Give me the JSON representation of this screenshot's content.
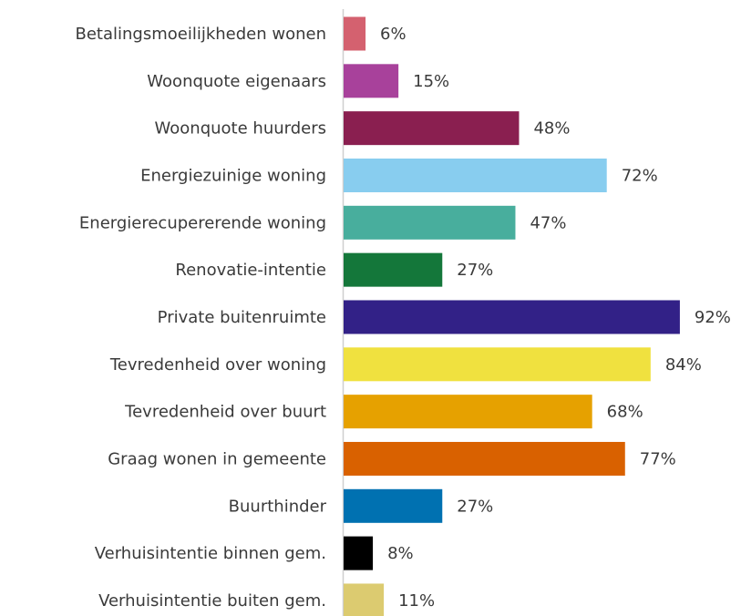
{
  "chart_data": {
    "type": "barh",
    "categories": [
      "Betalingsmoeilijkheden wonen",
      "Woonquote eigenaars",
      "Woonquote huurders",
      "Energiezuinige woning",
      "Energierecupererende woning",
      "Renovatie-intentie",
      "Private buitenruimte",
      "Tevredenheid over woning",
      "Tevredenheid over buurt",
      "Graag wonen in gemeente",
      "Buurthinder",
      "Verhuisintentie binnen gem.",
      "Verhuisintentie buiten gem."
    ],
    "values": [
      6,
      15,
      48,
      72,
      47,
      27,
      92,
      84,
      68,
      77,
      27,
      8,
      11
    ],
    "value_labels": [
      "6%",
      "15%",
      "48%",
      "72%",
      "47%",
      "27%",
      "92%",
      "84%",
      "68%",
      "77%",
      "27%",
      "8%",
      "11%"
    ],
    "colors": [
      "#d4616f",
      "#a8419b",
      "#8a1f50",
      "#88cdef",
      "#48ae9d",
      "#14773a",
      "#322187",
      "#f0e13f",
      "#e6a100",
      "#d96100",
      "#0071b1",
      "#000000",
      "#dccb70"
    ],
    "xlim": [
      0,
      100
    ]
  }
}
